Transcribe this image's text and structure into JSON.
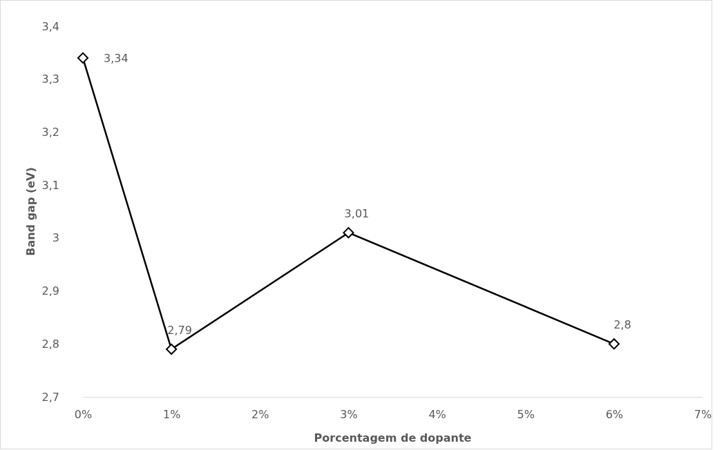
{
  "chart_data": {
    "type": "line",
    "xlabel": "Porcentagem de dopante",
    "ylabel": "Band gap (eV)",
    "x": [
      0,
      1,
      3,
      6
    ],
    "series": [
      {
        "color": "#000000",
        "values": [
          3.34,
          2.79,
          3.01,
          2.8
        ],
        "value_labels": [
          "3,34",
          "2,79",
          "3,01",
          "2,8"
        ]
      }
    ],
    "xlim": [
      0,
      7
    ],
    "xticks": [
      {
        "value": 0,
        "label": "0%"
      },
      {
        "value": 1,
        "label": "1%"
      },
      {
        "value": 2,
        "label": "2%"
      },
      {
        "value": 3,
        "label": "3%"
      },
      {
        "value": 4,
        "label": "4%"
      },
      {
        "value": 5,
        "label": "5%"
      },
      {
        "value": 6,
        "label": "6%"
      },
      {
        "value": 7,
        "label": "7%"
      }
    ],
    "ylim": [
      2.7,
      3.4
    ],
    "yticks": [
      {
        "value": 2.7,
        "label": "2,7"
      },
      {
        "value": 2.8,
        "label": "2,8"
      },
      {
        "value": 2.9,
        "label": "2,9"
      },
      {
        "value": 3,
        "label": "3"
      },
      {
        "value": 3.1,
        "label": "3,1"
      },
      {
        "value": 3.2,
        "label": "3,2"
      },
      {
        "value": 3.3,
        "label": "3,3"
      },
      {
        "value": 3.4,
        "label": "3,4"
      }
    ],
    "marker": "diamond",
    "line_style": "solid",
    "grid": false
  }
}
